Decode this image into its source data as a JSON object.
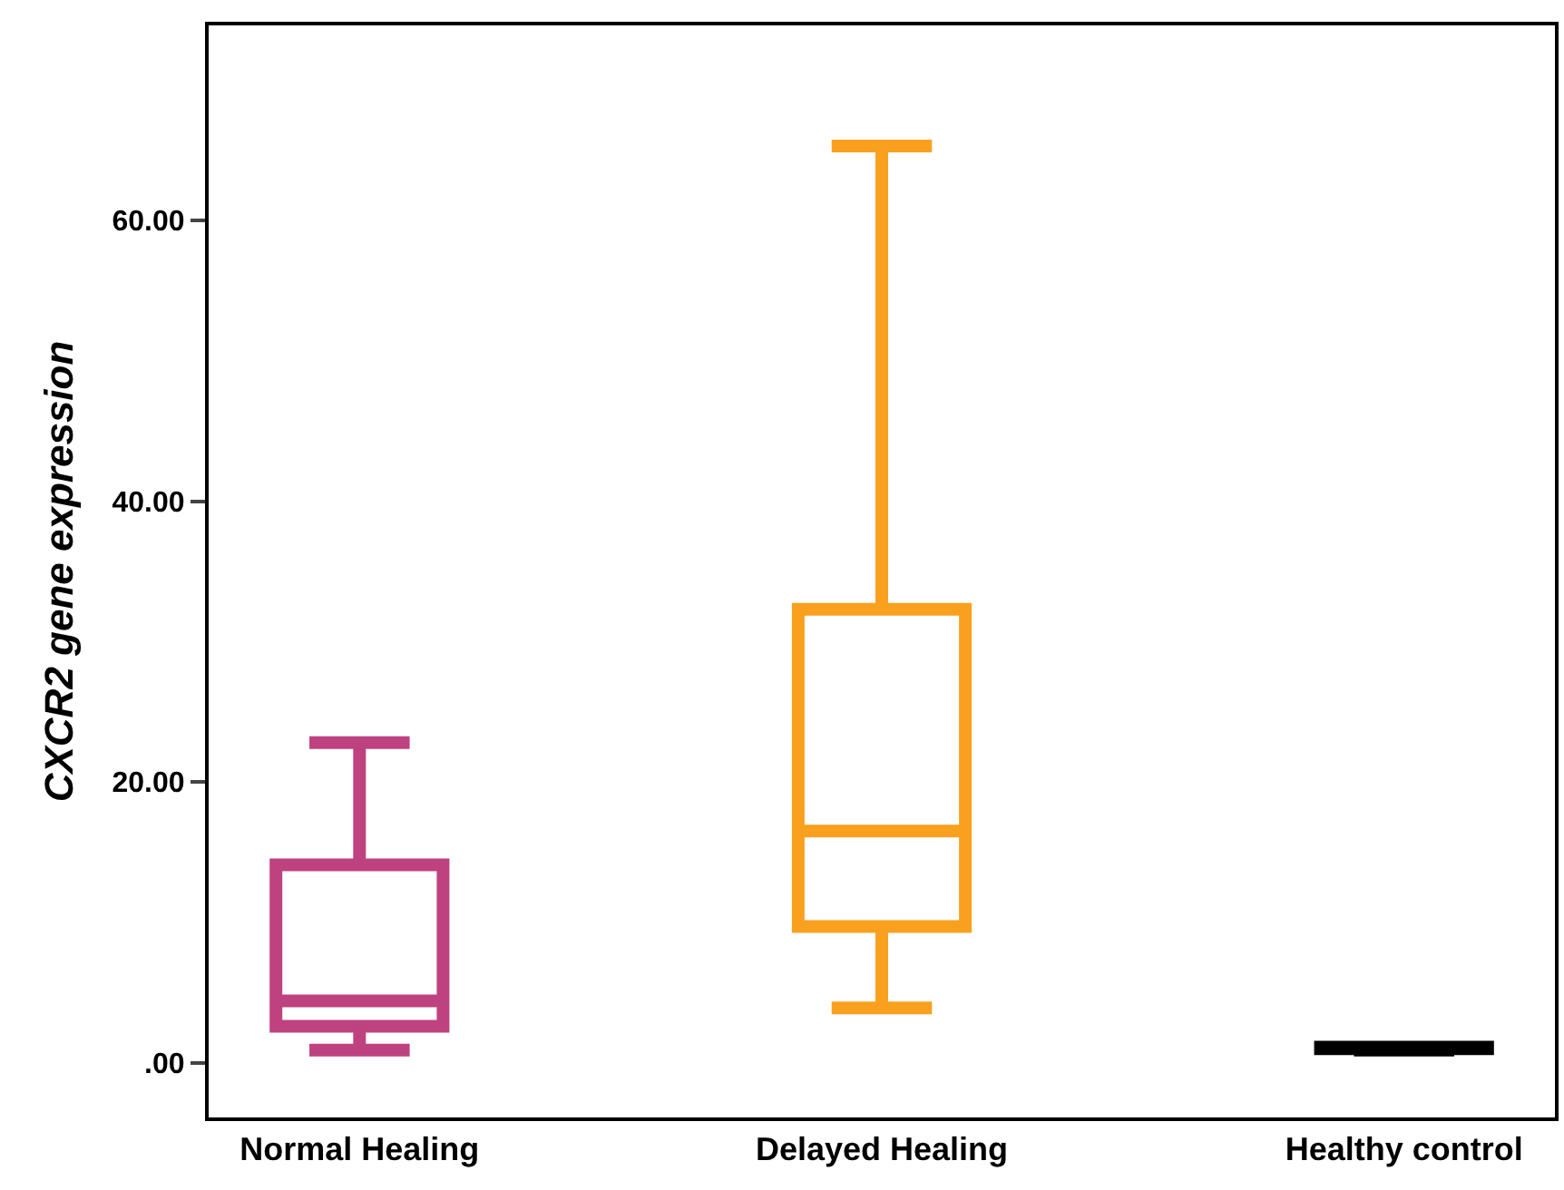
{
  "chart_data": {
    "type": "box",
    "ylabel": "CXCR2 gene expression",
    "categories": [
      "Normal Healing",
      "Delayed Healing",
      "Healthy control"
    ],
    "colors": [
      "#bf4280",
      "#f9a11e",
      "#000000"
    ],
    "boxes": [
      {
        "low": 0.9,
        "q1": 2.6,
        "median": 4.4,
        "q3": 14.1,
        "high": 22.8
      },
      {
        "low": 3.9,
        "q1": 9.7,
        "median": 16.5,
        "q3": 32.3,
        "high": 65.3
      },
      {
        "low": 0.9,
        "q1": 1.0,
        "median": 1.0,
        "q3": 1.1,
        "high": 1.1
      }
    ],
    "ylim": [
      -3.9,
      73.9
    ],
    "yticks": [
      {
        "value": 0,
        "label": ".00"
      },
      {
        "value": 20,
        "label": "20.00"
      },
      {
        "value": 40,
        "label": "40.00"
      },
      {
        "value": 60,
        "label": "60.00"
      }
    ],
    "legend": false
  }
}
